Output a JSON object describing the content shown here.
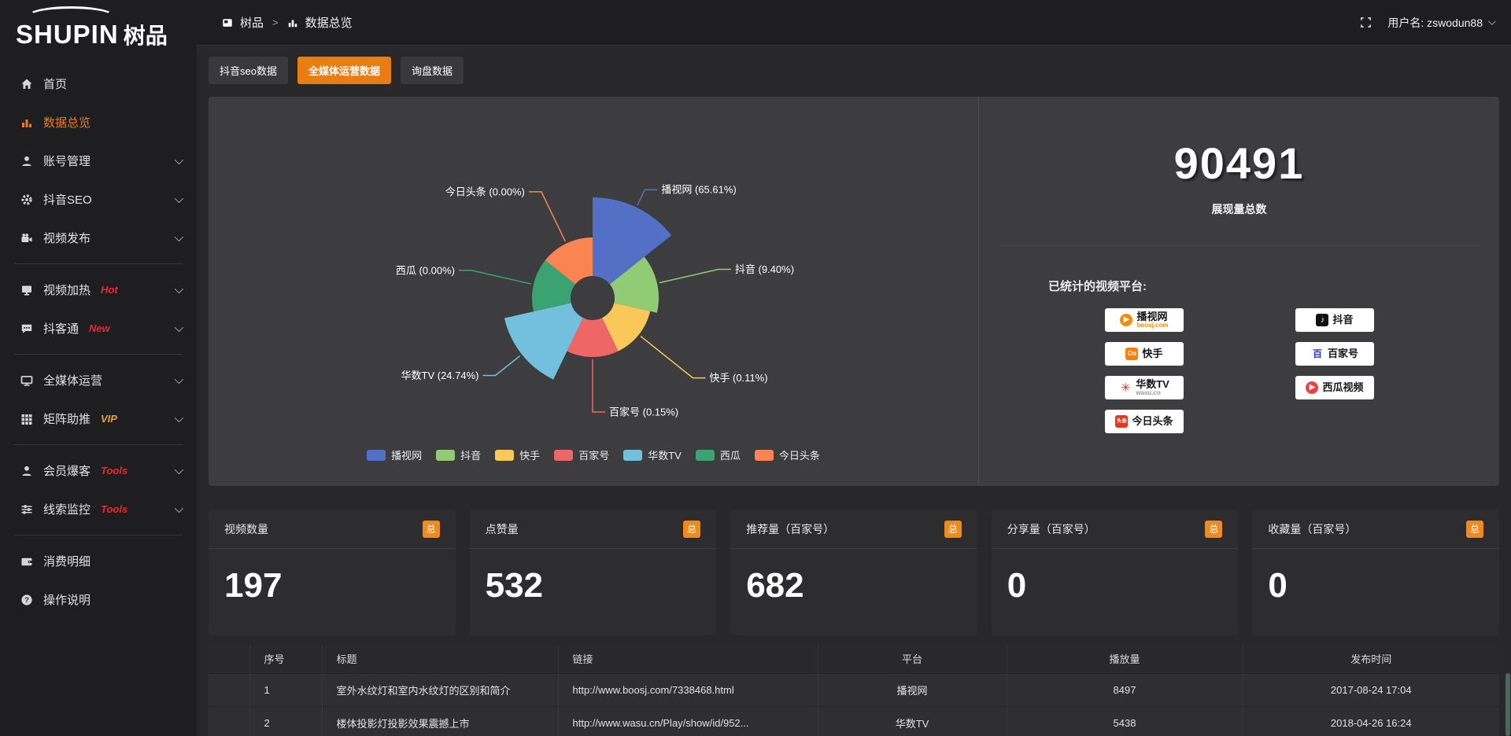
{
  "brand": {
    "logo_en": "SHUPIN",
    "logo_cn": "树品"
  },
  "topbar": {
    "breadcrumb": [
      {
        "label": "树品",
        "icon": "app-icon"
      },
      {
        "label": "数据总览",
        "icon": "chart-icon"
      }
    ],
    "separator": ">",
    "fullscreen_icon": "fullscreen-icon",
    "username": "用户名: zswodun88"
  },
  "sidebar": {
    "items": [
      {
        "label": "首页",
        "icon": "home",
        "chevron": false,
        "active": false
      },
      {
        "label": "数据总览",
        "icon": "chart",
        "chevron": false,
        "active": true
      },
      {
        "label": "账号管理",
        "icon": "user",
        "chevron": true
      },
      {
        "label": "抖音SEO",
        "icon": "gear",
        "chevron": true
      },
      {
        "label": "视频发布",
        "icon": "video",
        "chevron": true,
        "divider_after": true
      },
      {
        "label": "视频加热",
        "icon": "screen",
        "badge": "Hot",
        "badge_color": "#f5222d",
        "chevron": true
      },
      {
        "label": "抖客通",
        "icon": "chat",
        "badge": "New",
        "badge_color": "#f5222d",
        "chevron": true,
        "divider_after": true
      },
      {
        "label": "全媒体运营",
        "icon": "monitor",
        "chevron": true
      },
      {
        "label": "矩阵助推",
        "icon": "grid",
        "badge": "VIP",
        "badge_color": "#e6a23c",
        "chevron": true,
        "divider_after": true
      },
      {
        "label": "会员爆客",
        "icon": "member",
        "badge": "Tools",
        "badge_color": "#f5222d",
        "chevron": true
      },
      {
        "label": "线索监控",
        "icon": "sliders",
        "badge": "Tools",
        "badge_color": "#f5222d",
        "chevron": true,
        "divider_after": true
      },
      {
        "label": "消费明细",
        "icon": "wallet",
        "chevron": false
      },
      {
        "label": "操作说明",
        "icon": "help",
        "chevron": false
      }
    ]
  },
  "tabs": [
    {
      "label": "抖音seo数据",
      "active": false
    },
    {
      "label": "全媒体运营数据",
      "active": true
    },
    {
      "label": "询盘数据",
      "active": false
    }
  ],
  "chart_data": {
    "type": "pie",
    "subtype": "nightingale-rose",
    "categories": [
      "播视网",
      "抖音",
      "快手",
      "百家号",
      "华数TV",
      "西瓜",
      "今日头条"
    ],
    "values": [
      65.61,
      9.4,
      0.11,
      0.15,
      24.74,
      0.0,
      0.0
    ],
    "unit": "%",
    "value_labels": [
      "播视网 (65.61%)",
      "抖音 (9.40%)",
      "快手 (0.11%)",
      "百家号 (0.15%)",
      "华数TV (24.74%)",
      "西瓜 (0.00%)",
      "今日头条 (0.00%)"
    ],
    "colors": [
      "#5470c6",
      "#91cc75",
      "#fac858",
      "#ee6666",
      "#73c0de",
      "#3ba272",
      "#fc8452"
    ],
    "display_radii": [
      128,
      84,
      75,
      75,
      115,
      77,
      77
    ],
    "inner_radius": 28,
    "legend": [
      "播视网",
      "抖音",
      "快手",
      "百家号",
      "华数TV",
      "西瓜",
      "今日头条"
    ],
    "legend_position": "bottom",
    "title": ""
  },
  "summary": {
    "total": "90491",
    "total_label": "展现量总数",
    "platforms_label": "已统计的视频平台:",
    "platforms": [
      {
        "name": "播视网",
        "sub": "boosj.com",
        "icon": "boosj",
        "col": 0
      },
      {
        "name": "快手",
        "icon": "kuaishou",
        "col": 0
      },
      {
        "name": "华数TV",
        "sub": "wasu.cn",
        "icon": "wasu",
        "col": 0
      },
      {
        "name": "今日头条",
        "icon": "toutiao",
        "col": 0
      },
      {
        "name": "抖音",
        "icon": "douyin",
        "col": 1
      },
      {
        "name": "百家号",
        "icon": "baijia",
        "col": 1
      },
      {
        "name": "西瓜视频",
        "icon": "xigua",
        "col": 1
      }
    ]
  },
  "stat_cards": [
    {
      "title": "视频数量",
      "badge": "总",
      "value": "197"
    },
    {
      "title": "点赞量",
      "badge": "总",
      "value": "532"
    },
    {
      "title": "推荐量（百家号）",
      "badge": "总",
      "value": "682"
    },
    {
      "title": "分享量（百家号）",
      "badge": "总",
      "value": "0"
    },
    {
      "title": "收藏量（百家号）",
      "badge": "总",
      "value": "0"
    }
  ],
  "table": {
    "headers": [
      "序号",
      "标题",
      "链接",
      "平台",
      "播放量",
      "发布时间"
    ],
    "rows": [
      {
        "idx": "1",
        "title": "室外水纹灯和室内水纹灯的区别和简介",
        "link": "http://www.boosj.com/7338468.html",
        "platform": "播视网",
        "plays": "8497",
        "time": "2017-08-24 17:04"
      },
      {
        "idx": "2",
        "title": "楼体投影灯投影效果震撼上市",
        "link": "http://www.wasu.cn/Play/show/id/952...",
        "platform": "华数TV",
        "plays": "5438",
        "time": "2018-04-26 16:24"
      }
    ]
  }
}
